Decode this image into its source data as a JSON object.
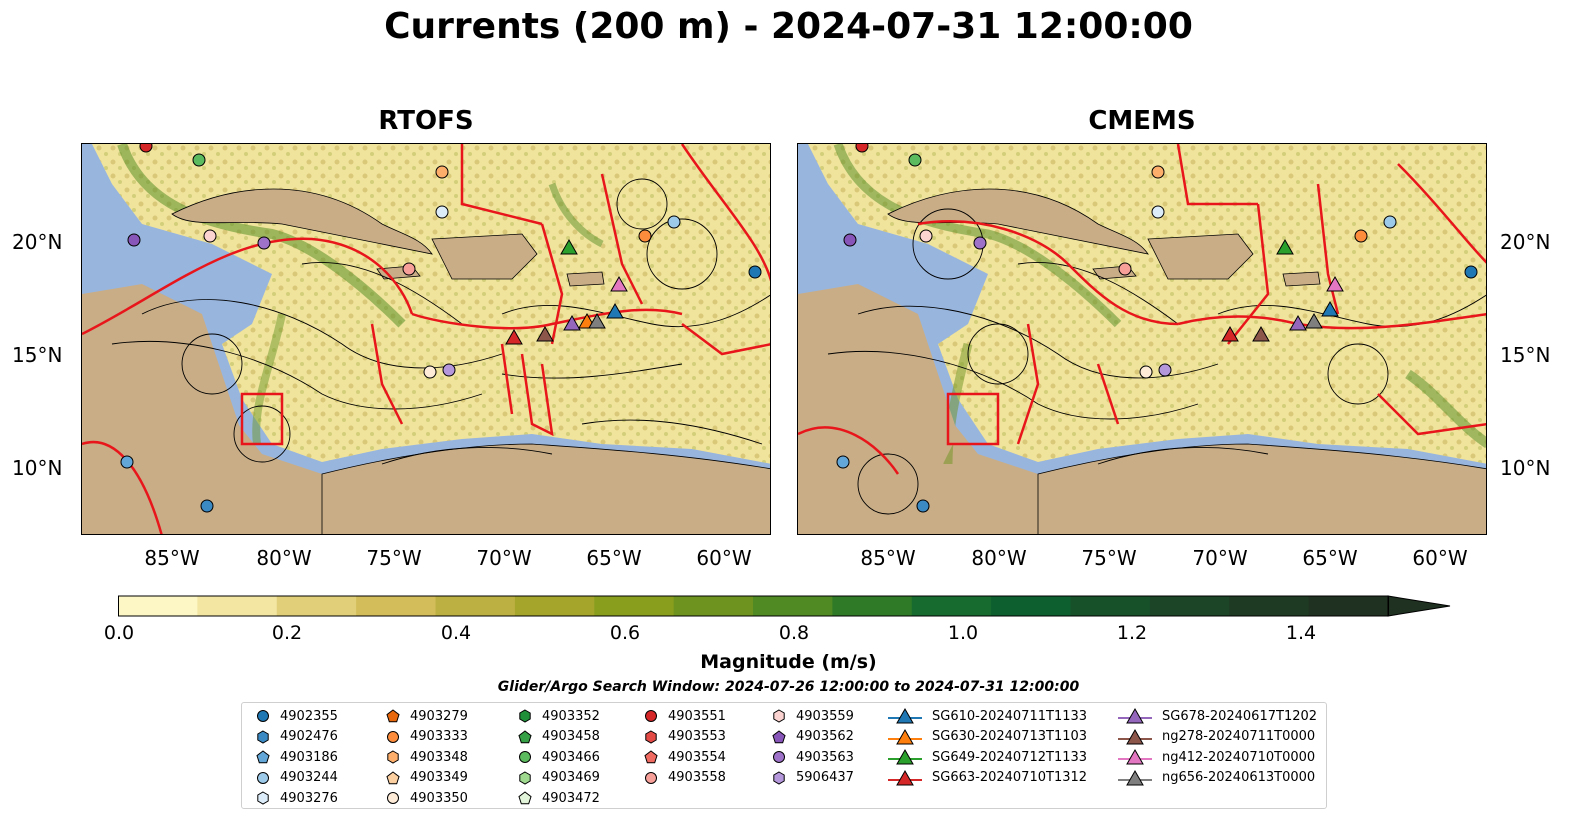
{
  "title": "Currents (200 m) - 2024-07-31 12:00:00",
  "panels": [
    {
      "title": "RTOFS"
    },
    {
      "title": "CMEMS"
    }
  ],
  "lat_labels": [
    "20°N",
    "15°N",
    "10°N"
  ],
  "lon_labels": [
    "85°W",
    "80°W",
    "75°W",
    "70°W",
    "65°W",
    "60°W"
  ],
  "colorbar": {
    "label": "Magnitude (m/s)",
    "ticks": [
      "0.0",
      "0.2",
      "0.4",
      "0.6",
      "0.8",
      "1.0",
      "1.2",
      "1.4"
    ],
    "colors": [
      "#fdf7c6",
      "#f3e6a2",
      "#e2cf79",
      "#d3bd5b",
      "#bcb042",
      "#a5a52c",
      "#8a9e1e",
      "#6e941f",
      "#4f8b22",
      "#2f7a27",
      "#176b2f",
      "#0d5f2f",
      "#16512a",
      "#1c4426",
      "#1f3a22",
      "#1f3120"
    ]
  },
  "search_window": "Glider/Argo Search Window: 2024-07-26 12:00:00 to 2024-07-31 12:00:00",
  "legend": [
    [
      {
        "label": "4902355",
        "marker": "circle",
        "color": "#1f77b4"
      },
      {
        "label": "4902476",
        "marker": "hexagon",
        "color": "#3b8ac4"
      },
      {
        "label": "4903186",
        "marker": "pentagon",
        "color": "#63a7d8"
      },
      {
        "label": "4903244",
        "marker": "circle",
        "color": "#9ecae9"
      },
      {
        "label": "4903276",
        "marker": "hexagon",
        "color": "#dcecf8"
      }
    ],
    [
      {
        "label": "4903279",
        "marker": "pentagon",
        "color": "#e6670c"
      },
      {
        "label": "4903333",
        "marker": "circle",
        "color": "#fd8d3c"
      },
      {
        "label": "4903348",
        "marker": "hexagon",
        "color": "#fdae6b"
      },
      {
        "label": "4903349",
        "marker": "pentagon",
        "color": "#fdd0a2"
      },
      {
        "label": "4903350",
        "marker": "circle",
        "color": "#feecd9"
      }
    ],
    [
      {
        "label": "4903352",
        "marker": "hexagon",
        "color": "#1f8f3a"
      },
      {
        "label": "4903458",
        "marker": "pentagon",
        "color": "#36a046"
      },
      {
        "label": "4903466",
        "marker": "circle",
        "color": "#5cbb5e"
      },
      {
        "label": "4903469",
        "marker": "hexagon",
        "color": "#9ed98f"
      },
      {
        "label": "4903472",
        "marker": "pentagon",
        "color": "#e2f4d9"
      }
    ],
    [
      {
        "label": "4903551",
        "marker": "circle",
        "color": "#d62728"
      },
      {
        "label": "4903553",
        "marker": "hexagon",
        "color": "#e34a46"
      },
      {
        "label": "4903554",
        "marker": "pentagon",
        "color": "#ef6b61"
      },
      {
        "label": "4903558",
        "marker": "circle",
        "color": "#f7a09a"
      }
    ],
    [
      {
        "label": "4903559",
        "marker": "hexagon",
        "color": "#fbd3d0"
      },
      {
        "label": "4903562",
        "marker": "pentagon",
        "color": "#8856b8"
      },
      {
        "label": "4903563",
        "marker": "circle",
        "color": "#9e72c8"
      },
      {
        "label": "5906437",
        "marker": "hexagon",
        "color": "#b597dc"
      }
    ],
    [
      {
        "label": "SG610-20240711T1133",
        "marker": "triangle-line",
        "color": "#1f77b4"
      },
      {
        "label": "SG630-20240713T1103",
        "marker": "triangle-line",
        "color": "#ff7f0e"
      },
      {
        "label": "SG649-20240712T1133",
        "marker": "triangle-line",
        "color": "#2ca02c"
      },
      {
        "label": "SG663-20240710T1312",
        "marker": "triangle-line",
        "color": "#d62728"
      }
    ],
    [
      {
        "label": "SG678-20240617T1202",
        "marker": "triangle-line",
        "color": "#9467bd"
      },
      {
        "label": "ng278-20240711T0000",
        "marker": "triangle-line",
        "color": "#8c564b"
      },
      {
        "label": "ng412-20240710T0000",
        "marker": "triangle-line",
        "color": "#e377c2"
      },
      {
        "label": "ng656-20240613T0000",
        "marker": "triangle-line",
        "color": "#7f7f7f"
      }
    ]
  ]
}
